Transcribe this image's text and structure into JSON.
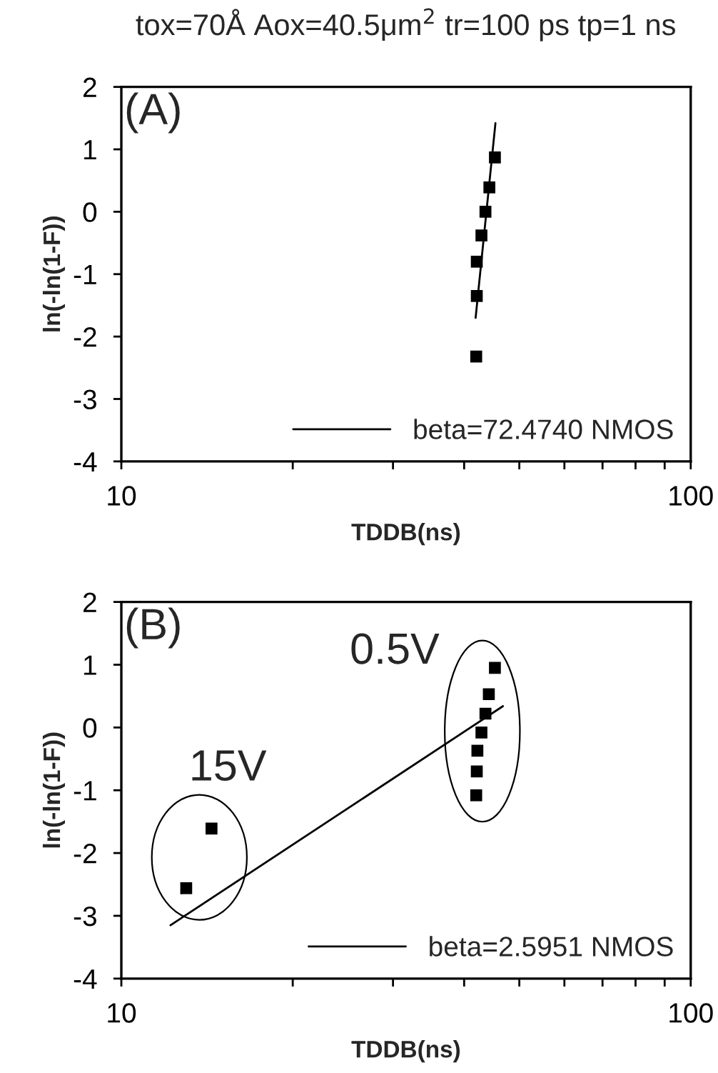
{
  "chart_data": [
    {
      "type": "scatter",
      "title": "tox=70Å Aox=40.5μm$^{2}$ tr=100 ps tp=1 ns",
      "xlabel": "TDDB(ns)",
      "ylabel": "ln(-ln(1-F))",
      "log": "x",
      "xlim": [
        10,
        100
      ],
      "xticks": [
        10,
        {
          "value": 20,
          "label": null
        },
        {
          "value": 30,
          "label": null
        },
        {
          "value": 40,
          "label": null
        },
        {
          "value": 50,
          "label": null
        },
        {
          "value": 60,
          "label": null
        },
        {
          "value": 70,
          "label": null
        },
        {
          "value": 80,
          "label": null
        },
        {
          "value": 90,
          "label": null
        },
        100
      ],
      "ylim": [
        -4,
        2
      ],
      "yticks": [
        -4,
        -3,
        -2,
        -1,
        0,
        1,
        2
      ],
      "grid": false,
      "legend": "bottom right",
      "annotations": [
        "(A)"
      ],
      "series": [
        {
          "marker": "square",
          "color": "#000000",
          "x": [
            42.0,
            42.1,
            42.1,
            42.9,
            43.6,
            44.3,
            45.3
          ],
          "values": [
            -2.32,
            -1.35,
            -0.8,
            -0.38,
            0.0,
            0.39,
            0.87
          ]
        },
        {
          "type": "line",
          "name": "beta=72.4740 NMOS",
          "color": "#000000",
          "x": [
            41.9,
            45.4
          ],
          "values": [
            -1.7,
            1.42
          ]
        }
      ]
    },
    {
      "type": "scatter",
      "xlabel": "TDDB(ns)",
      "ylabel": "ln(-ln(1-F))",
      "log": "x",
      "xlim": [
        10,
        100
      ],
      "xticks": [
        10,
        {
          "value": 20,
          "label": null
        },
        {
          "value": 30,
          "label": null
        },
        {
          "value": 40,
          "label": null
        },
        {
          "value": 50,
          "label": null
        },
        {
          "value": 60,
          "label": null
        },
        {
          "value": 70,
          "label": null
        },
        {
          "value": 80,
          "label": null
        },
        {
          "value": 90,
          "label": null
        },
        100
      ],
      "ylim": [
        -4,
        2
      ],
      "yticks": [
        -4,
        -3,
        -2,
        -1,
        0,
        1,
        2
      ],
      "grid": false,
      "legend": "bottom right",
      "annotations": [
        "(B)",
        "15V",
        "0.5V"
      ],
      "series": [
        {
          "marker": "square",
          "color": "#000000",
          "x": [
            13.0,
            14.4,
            42.0,
            42.1,
            42.2,
            42.9,
            43.6,
            44.2,
            45.3
          ],
          "values": [
            -2.56,
            -1.61,
            -1.08,
            -0.7,
            -0.37,
            -0.08,
            0.22,
            0.53,
            0.95
          ]
        },
        {
          "type": "line",
          "name": "beta=2.5951 NMOS",
          "color": "#000000",
          "x": [
            12.2,
            46.8
          ],
          "values": [
            -3.15,
            0.34
          ]
        }
      ]
    }
  ]
}
